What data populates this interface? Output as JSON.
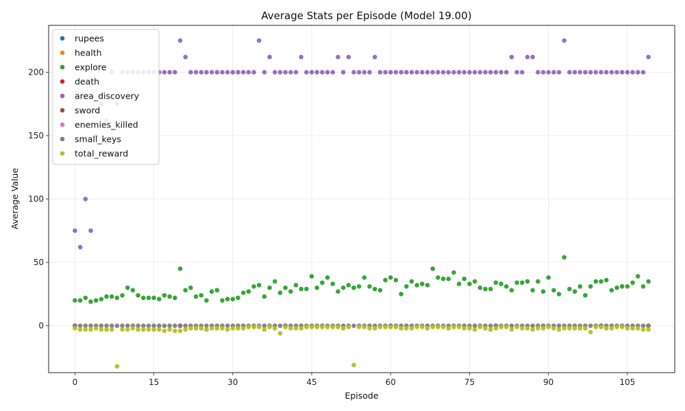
{
  "chart_data": {
    "type": "scatter",
    "title": "Average Stats per Episode (Model 19.00)",
    "xlabel": "Episode",
    "ylabel": "Average Value",
    "xlim": [
      -5,
      114
    ],
    "ylim": [
      -37,
      237
    ],
    "x_ticks": [
      0,
      15,
      30,
      45,
      60,
      75,
      90,
      105
    ],
    "y_ticks": [
      0,
      50,
      100,
      150,
      200
    ],
    "grid": true,
    "legend_position": "top-left",
    "series": [
      {
        "name": "rupees",
        "color": "#1f77b4",
        "x": [
          0,
          20,
          40,
          60,
          80,
          100,
          109
        ],
        "y": [
          0,
          0,
          0,
          0,
          0,
          0,
          0
        ]
      },
      {
        "name": "health",
        "color": "#ff7f0e",
        "x": [
          0,
          20,
          40,
          60,
          80,
          100,
          109
        ],
        "y": [
          0,
          0,
          0,
          0,
          0,
          0,
          0
        ]
      },
      {
        "name": "explore",
        "color": "#2ca02c",
        "x": [
          0,
          1,
          2,
          3,
          4,
          5,
          6,
          7,
          8,
          9,
          10,
          11,
          12,
          13,
          14,
          15,
          16,
          17,
          18,
          19,
          20,
          21,
          22,
          23,
          24,
          25,
          26,
          27,
          28,
          29,
          30,
          31,
          32,
          33,
          34,
          35,
          36,
          37,
          38,
          39,
          40,
          41,
          42,
          43,
          44,
          45,
          46,
          47,
          48,
          49,
          50,
          51,
          52,
          53,
          54,
          55,
          56,
          57,
          58,
          59,
          60,
          61,
          62,
          63,
          64,
          65,
          66,
          67,
          68,
          69,
          70,
          71,
          72,
          73,
          74,
          75,
          76,
          77,
          78,
          79,
          80,
          81,
          82,
          83,
          84,
          85,
          86,
          87,
          88,
          89,
          90,
          91,
          92,
          93,
          94,
          95,
          96,
          97,
          98,
          99,
          100,
          101,
          102,
          103,
          104,
          105,
          106,
          107,
          108,
          109
        ],
        "y": [
          20,
          20,
          22,
          19,
          20,
          21,
          23,
          23,
          22,
          24,
          30,
          28,
          24,
          22,
          22,
          22,
          21,
          24,
          23,
          22,
          45,
          28,
          30,
          23,
          24,
          20,
          27,
          28,
          20,
          21,
          21,
          22,
          26,
          27,
          31,
          32,
          23,
          30,
          35,
          26,
          30,
          27,
          32,
          29,
          29,
          39,
          30,
          34,
          38,
          33,
          27,
          30,
          32,
          30,
          31,
          38,
          31,
          29,
          28,
          36,
          38,
          36,
          25,
          31,
          35,
          32,
          33,
          32,
          45,
          38,
          37,
          37,
          42,
          33,
          37,
          33,
          35,
          30,
          29,
          29,
          34,
          33,
          31,
          28,
          34,
          34,
          35,
          28,
          35,
          27,
          38,
          28,
          25,
          54,
          29,
          27,
          31,
          24,
          31,
          35,
          35,
          36,
          28,
          30,
          31,
          31,
          34,
          39,
          31,
          35
        ]
      },
      {
        "name": "death",
        "color": "#d62728",
        "x": [
          0,
          20,
          40,
          60,
          80,
          100,
          109
        ],
        "y": [
          0,
          0,
          0,
          0,
          0,
          0,
          0
        ]
      },
      {
        "name": "area_discovery",
        "color": "#9467bd",
        "x": [
          0,
          1,
          2,
          3,
          4,
          5,
          6,
          7,
          8,
          9,
          10,
          11,
          12,
          13,
          14,
          15,
          16,
          17,
          18,
          19,
          20,
          21,
          22,
          23,
          24,
          25,
          26,
          27,
          28,
          29,
          30,
          31,
          32,
          33,
          34,
          35,
          36,
          37,
          38,
          39,
          40,
          41,
          42,
          43,
          44,
          45,
          46,
          47,
          48,
          49,
          50,
          51,
          52,
          53,
          54,
          55,
          56,
          57,
          58,
          59,
          60,
          61,
          62,
          63,
          64,
          65,
          66,
          67,
          68,
          69,
          70,
          71,
          72,
          73,
          74,
          75,
          76,
          77,
          78,
          79,
          80,
          81,
          82,
          83,
          84,
          85,
          86,
          87,
          88,
          89,
          90,
          91,
          92,
          93,
          94,
          95,
          96,
          97,
          98,
          99,
          100,
          101,
          102,
          103,
          104,
          105,
          106,
          107,
          108,
          109
        ],
        "y": [
          75,
          62,
          100,
          75,
          150,
          175,
          162,
          200,
          175,
          200,
          200,
          200,
          200,
          200,
          200,
          200,
          200,
          200,
          200,
          200,
          225,
          212,
          200,
          200,
          200,
          200,
          200,
          200,
          200,
          200,
          200,
          200,
          200,
          200,
          200,
          225,
          200,
          212,
          200,
          200,
          200,
          200,
          200,
          212,
          200,
          200,
          200,
          200,
          200,
          200,
          212,
          200,
          212,
          200,
          200,
          200,
          200,
          212,
          200,
          200,
          200,
          200,
          200,
          200,
          200,
          200,
          200,
          200,
          200,
          200,
          200,
          200,
          200,
          200,
          200,
          200,
          200,
          200,
          200,
          200,
          200,
          200,
          200,
          212,
          200,
          200,
          212,
          212,
          200,
          200,
          200,
          200,
          200,
          225,
          200,
          200,
          200,
          200,
          200,
          200,
          200,
          200,
          200,
          200,
          200,
          200,
          200,
          200,
          200,
          212
        ]
      },
      {
        "name": "sword",
        "color": "#8c564b",
        "x": [
          0,
          20,
          40,
          60,
          80,
          100,
          109
        ],
        "y": [
          0,
          0,
          0,
          0,
          0,
          0,
          0
        ]
      },
      {
        "name": "enemies_killed",
        "color": "#e377c2",
        "x": [
          0,
          20,
          40,
          60,
          80,
          100,
          109
        ],
        "y": [
          0,
          0,
          0,
          0,
          0,
          0,
          0
        ]
      },
      {
        "name": "small_keys",
        "color": "#7f7f7f",
        "x": [
          0,
          1,
          2,
          3,
          4,
          5,
          6,
          7,
          8,
          9,
          10,
          11,
          12,
          13,
          14,
          15,
          16,
          17,
          18,
          19,
          20,
          21,
          22,
          23,
          24,
          25,
          26,
          27,
          28,
          29,
          30,
          31,
          32,
          33,
          34,
          35,
          36,
          37,
          38,
          39,
          40,
          41,
          42,
          43,
          44,
          45,
          46,
          47,
          48,
          49,
          50,
          51,
          52,
          53,
          54,
          55,
          56,
          57,
          58,
          59,
          60,
          61,
          62,
          63,
          64,
          65,
          66,
          67,
          68,
          69,
          70,
          71,
          72,
          73,
          74,
          75,
          76,
          77,
          78,
          79,
          80,
          81,
          82,
          83,
          84,
          85,
          86,
          87,
          88,
          89,
          90,
          91,
          92,
          93,
          94,
          95,
          96,
          97,
          98,
          99,
          100,
          101,
          102,
          103,
          104,
          105,
          106,
          107,
          108,
          109
        ],
        "y": [
          0,
          0,
          0,
          0,
          0,
          0,
          0,
          0,
          0,
          0,
          0,
          0,
          0,
          0,
          0,
          0,
          0,
          0,
          0,
          0,
          0,
          0,
          0,
          0,
          0,
          0,
          0,
          0,
          0,
          0,
          0,
          0,
          0,
          0,
          0,
          0,
          0,
          0,
          0,
          0,
          0,
          0,
          0,
          0,
          0,
          0,
          0,
          0,
          0,
          0,
          0,
          0,
          0,
          0,
          0,
          0,
          0,
          0,
          0,
          0,
          0,
          0,
          0,
          0,
          0,
          0,
          0,
          0,
          0,
          0,
          0,
          0,
          0,
          0,
          0,
          0,
          0,
          0,
          0,
          0,
          0,
          0,
          0,
          0,
          0,
          0,
          0,
          0,
          0,
          0,
          0,
          0,
          0,
          0,
          0,
          0,
          0,
          0,
          0,
          0,
          0,
          0,
          0,
          0,
          0,
          0,
          0,
          0,
          0,
          0
        ]
      },
      {
        "name": "total_reward",
        "color": "#bcbd22",
        "x": [
          0,
          1,
          2,
          3,
          4,
          5,
          6,
          7,
          8,
          9,
          10,
          11,
          12,
          13,
          14,
          15,
          16,
          17,
          18,
          19,
          20,
          21,
          22,
          23,
          24,
          25,
          26,
          27,
          28,
          29,
          30,
          31,
          32,
          33,
          34,
          35,
          36,
          37,
          38,
          39,
          40,
          41,
          42,
          43,
          44,
          45,
          46,
          47,
          48,
          49,
          50,
          51,
          52,
          53,
          54,
          55,
          56,
          57,
          58,
          59,
          60,
          61,
          62,
          63,
          64,
          65,
          66,
          67,
          68,
          69,
          70,
          71,
          72,
          73,
          74,
          75,
          76,
          77,
          78,
          79,
          80,
          81,
          82,
          83,
          84,
          85,
          86,
          87,
          88,
          89,
          90,
          91,
          92,
          93,
          94,
          95,
          96,
          97,
          98,
          99,
          100,
          101,
          102,
          103,
          104,
          105,
          106,
          107,
          108,
          109
        ],
        "y": [
          -2,
          -3,
          -3,
          -3,
          -2,
          -3,
          -3,
          -3,
          -32,
          -3,
          -3,
          -2,
          -3,
          -3,
          -3,
          -3,
          -3,
          -4,
          -3,
          -4,
          -4,
          -3,
          -2,
          -2,
          -2,
          -3,
          -2,
          -2,
          -2,
          -3,
          -2,
          -2,
          -2,
          -1,
          -1,
          -1,
          -3,
          -1,
          -2,
          -6,
          -1,
          -2,
          -2,
          -2,
          -1,
          -1,
          -1,
          -1,
          -1,
          -1,
          -1,
          -2,
          -1,
          -31,
          -1,
          -1,
          -2,
          -2,
          -1,
          -1,
          -1,
          -1,
          -2,
          -2,
          -2,
          -1,
          -1,
          -2,
          -1,
          -1,
          -1,
          -2,
          -1,
          -1,
          -2,
          -2,
          -3,
          -1,
          -2,
          -3,
          -2,
          -1,
          -1,
          -3,
          -1,
          -2,
          -2,
          -3,
          -2,
          -2,
          -1,
          -2,
          -3,
          -2,
          -2,
          -2,
          -2,
          -2,
          -5,
          -1,
          -1,
          -2,
          -2,
          -1,
          -1,
          -2,
          -2,
          -2,
          -3,
          -3
        ]
      }
    ]
  }
}
